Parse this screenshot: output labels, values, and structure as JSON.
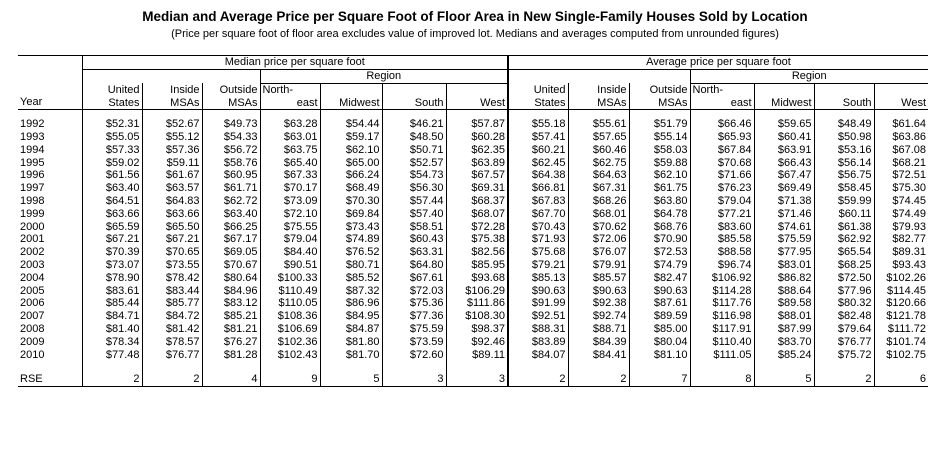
{
  "title": "Median and Average Price per Square Foot of Floor Area in New Single-Family Houses Sold by Location",
  "subtitle": "(Price per square foot of floor area excludes value of improved lot. Medians and averages computed from unrounded figures)",
  "headers": {
    "year": "Year",
    "median_group": "Median price per square foot",
    "average_group": "Average price per square foot",
    "region": "Region",
    "col_us_1": "United",
    "col_us_2": "States",
    "col_in_1": "Inside",
    "col_in_2": "MSAs",
    "col_out_1": "Outside",
    "col_out_2": "MSAs",
    "col_ne_1": "North-",
    "col_ne_2": "east",
    "col_mw": "Midwest",
    "col_so": "South",
    "col_we": "West"
  },
  "rows": [
    {
      "year": "1992",
      "m": [
        "$52.31",
        "$52.67",
        "$49.73",
        "$63.28",
        "$54.44",
        "$46.21",
        "$57.87"
      ],
      "a": [
        "$55.18",
        "$55.61",
        "$51.79",
        "$66.46",
        "$59.65",
        "$48.49",
        "$61.64"
      ]
    },
    {
      "year": "1993",
      "m": [
        "$55.05",
        "$55.12",
        "$54.33",
        "$63.01",
        "$59.17",
        "$48.50",
        "$60.28"
      ],
      "a": [
        "$57.41",
        "$57.65",
        "$55.14",
        "$65.93",
        "$60.41",
        "$50.98",
        "$63.86"
      ]
    },
    {
      "year": "1994",
      "m": [
        "$57.33",
        "$57.36",
        "$56.72",
        "$63.75",
        "$62.10",
        "$50.71",
        "$62.35"
      ],
      "a": [
        "$60.21",
        "$60.46",
        "$58.03",
        "$67.84",
        "$63.91",
        "$53.16",
        "$67.08"
      ]
    },
    {
      "year": "1995",
      "m": [
        "$59.02",
        "$59.11",
        "$58.76",
        "$65.40",
        "$65.00",
        "$52.57",
        "$63.89"
      ],
      "a": [
        "$62.45",
        "$62.75",
        "$59.88",
        "$70.68",
        "$66.43",
        "$56.14",
        "$68.21"
      ]
    },
    {
      "year": "1996",
      "m": [
        "$61.56",
        "$61.67",
        "$60.95",
        "$67.33",
        "$66.24",
        "$54.73",
        "$67.57"
      ],
      "a": [
        "$64.38",
        "$64.63",
        "$62.10",
        "$71.66",
        "$67.47",
        "$56.75",
        "$72.51"
      ]
    },
    {
      "year": "1997",
      "m": [
        "$63.40",
        "$63.57",
        "$61.71",
        "$70.17",
        "$68.49",
        "$56.30",
        "$69.31"
      ],
      "a": [
        "$66.81",
        "$67.31",
        "$61.75",
        "$76.23",
        "$69.49",
        "$58.45",
        "$75.30"
      ]
    },
    {
      "year": "1998",
      "m": [
        "$64.51",
        "$64.83",
        "$62.72",
        "$73.09",
        "$70.30",
        "$57.44",
        "$68.37"
      ],
      "a": [
        "$67.83",
        "$68.26",
        "$63.80",
        "$79.04",
        "$71.38",
        "$59.99",
        "$74.45"
      ]
    },
    {
      "year": "1999",
      "m": [
        "$63.66",
        "$63.66",
        "$63.40",
        "$72.10",
        "$69.84",
        "$57.40",
        "$68.07"
      ],
      "a": [
        "$67.70",
        "$68.01",
        "$64.78",
        "$77.21",
        "$71.46",
        "$60.11",
        "$74.49"
      ]
    },
    {
      "year": "2000",
      "m": [
        "$65.59",
        "$65.50",
        "$66.25",
        "$75.55",
        "$73.43",
        "$58.51",
        "$72.28"
      ],
      "a": [
        "$70.43",
        "$70.62",
        "$68.76",
        "$83.60",
        "$74.61",
        "$61.38",
        "$79.93"
      ]
    },
    {
      "year": "2001",
      "m": [
        "$67.21",
        "$67.21",
        "$67.17",
        "$79.04",
        "$74.89",
        "$60.43",
        "$75.38"
      ],
      "a": [
        "$71.93",
        "$72.06",
        "$70.90",
        "$85.58",
        "$75.59",
        "$62.92",
        "$82.77"
      ]
    },
    {
      "year": "2002",
      "m": [
        "$70.39",
        "$70.65",
        "$69.05",
        "$84.40",
        "$76.52",
        "$63.31",
        "$82.56"
      ],
      "a": [
        "$75.68",
        "$76.07",
        "$72.53",
        "$88.58",
        "$77.95",
        "$65.54",
        "$89.31"
      ]
    },
    {
      "year": "2003",
      "m": [
        "$73.07",
        "$73.55",
        "$70.67",
        "$90.51",
        "$80.71",
        "$64.80",
        "$85.95"
      ],
      "a": [
        "$79.21",
        "$79.91",
        "$74.79",
        "$96.74",
        "$83.01",
        "$68.25",
        "$93.43"
      ]
    },
    {
      "year": "2004",
      "m": [
        "$78.90",
        "$78.42",
        "$80.64",
        "$100.33",
        "$85.52",
        "$67.61",
        "$93.68"
      ],
      "a": [
        "$85.13",
        "$85.57",
        "$82.47",
        "$106.92",
        "$86.82",
        "$72.50",
        "$102.26"
      ]
    },
    {
      "year": "2005",
      "m": [
        "$83.61",
        "$83.44",
        "$84.96",
        "$110.49",
        "$87.32",
        "$72.03",
        "$106.29"
      ],
      "a": [
        "$90.63",
        "$90.63",
        "$90.63",
        "$114.28",
        "$88.64",
        "$77.96",
        "$114.45"
      ]
    },
    {
      "year": "2006",
      "m": [
        "$85.44",
        "$85.77",
        "$83.12",
        "$110.05",
        "$86.96",
        "$75.36",
        "$111.86"
      ],
      "a": [
        "$91.99",
        "$92.38",
        "$87.61",
        "$117.76",
        "$89.58",
        "$80.32",
        "$120.66"
      ]
    },
    {
      "year": "2007",
      "m": [
        "$84.71",
        "$84.72",
        "$85.21",
        "$108.36",
        "$84.95",
        "$77.36",
        "$108.30"
      ],
      "a": [
        "$92.51",
        "$92.74",
        "$89.59",
        "$116.98",
        "$88.01",
        "$82.48",
        "$121.78"
      ]
    },
    {
      "year": "2008",
      "m": [
        "$81.40",
        "$81.42",
        "$81.21",
        "$106.69",
        "$84.87",
        "$75.59",
        "$98.37"
      ],
      "a": [
        "$88.31",
        "$88.71",
        "$85.00",
        "$117.91",
        "$87.99",
        "$79.64",
        "$111.72"
      ]
    },
    {
      "year": "2009",
      "m": [
        "$78.34",
        "$78.57",
        "$76.27",
        "$102.36",
        "$81.80",
        "$73.59",
        "$92.46"
      ],
      "a": [
        "$83.89",
        "$84.39",
        "$80.04",
        "$110.40",
        "$83.70",
        "$76.77",
        "$101.74"
      ]
    },
    {
      "year": "2010",
      "m": [
        "$77.48",
        "$76.77",
        "$81.28",
        "$102.43",
        "$81.70",
        "$72.60",
        "$89.11"
      ],
      "a": [
        "$84.07",
        "$84.41",
        "$81.10",
        "$111.05",
        "$85.24",
        "$75.72",
        "$102.75"
      ]
    }
  ],
  "rse": {
    "label": "RSE",
    "m": [
      "2",
      "2",
      "4",
      "9",
      "5",
      "3",
      "3"
    ],
    "a": [
      "2",
      "2",
      "7",
      "8",
      "5",
      "2",
      "6"
    ]
  }
}
